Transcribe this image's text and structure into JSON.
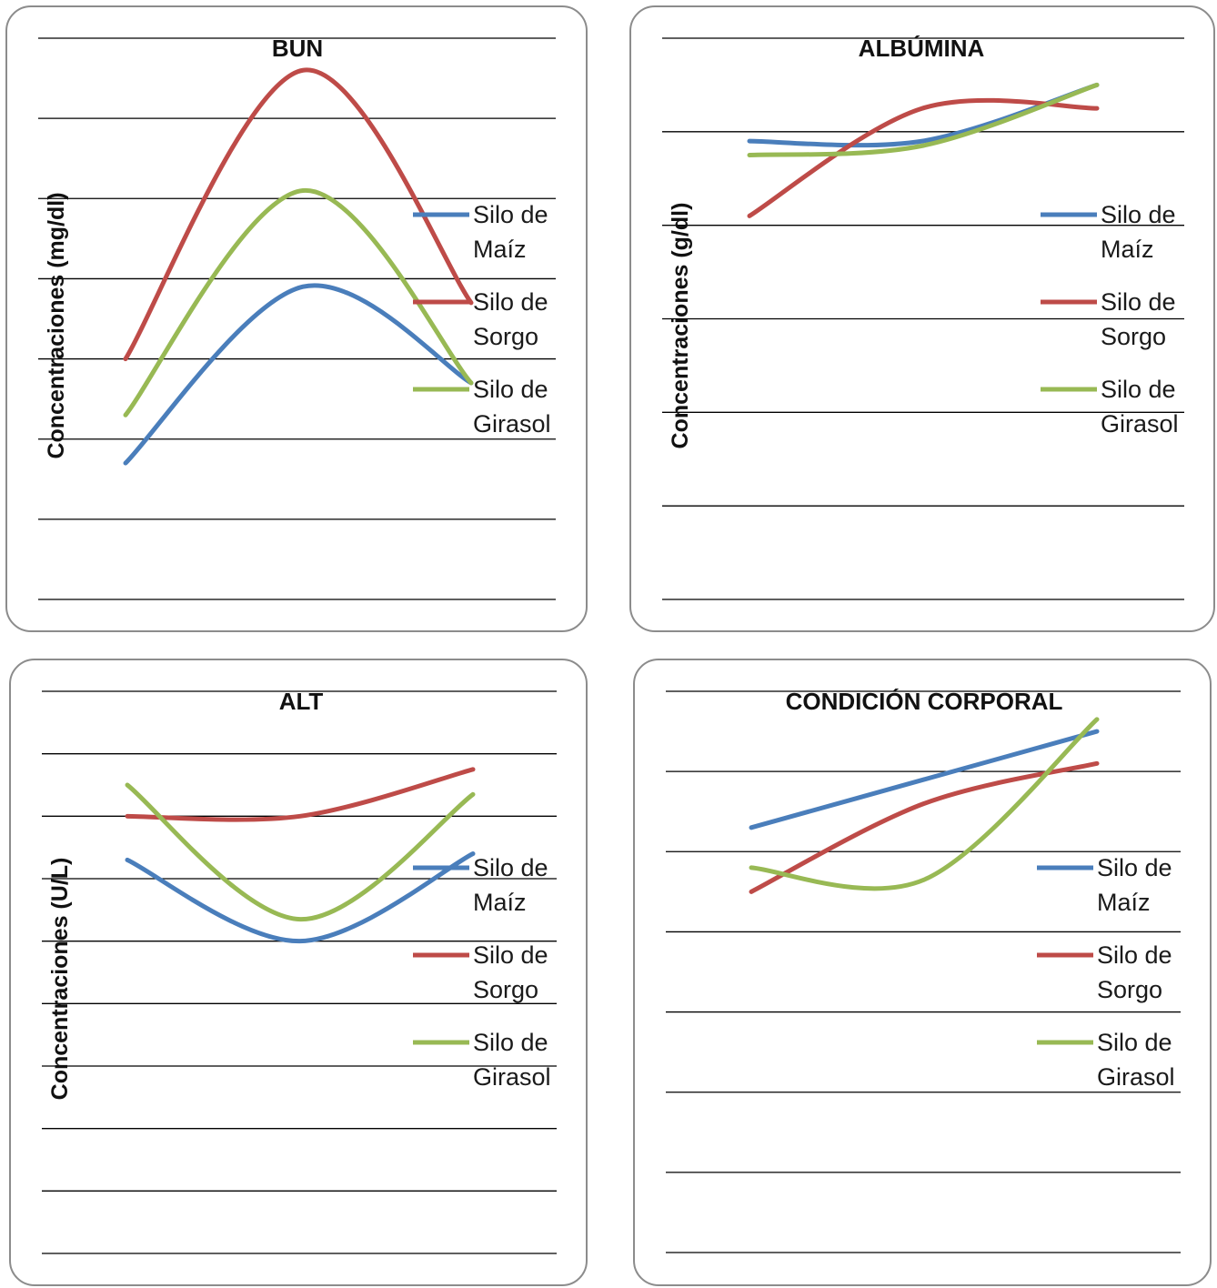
{
  "colors": {
    "maiz": "#4a7ebb",
    "sorgo": "#be4b48",
    "girasol": "#98b954",
    "grid": "#000000"
  },
  "chart_data": [
    {
      "type": "line",
      "title": "BUN",
      "ylabel": "Concentraciones (mg/dl)",
      "xlabel": "",
      "x": [
        1,
        2,
        3
      ],
      "ylim": [
        0,
        7
      ],
      "gridlines": 7,
      "grid": true,
      "legend": "right",
      "series": [
        {
          "name": "Silo de Maíz",
          "values": [
            1.7,
            3.9,
            2.7
          ]
        },
        {
          "name": "Silo de Sorgo",
          "values": [
            3.0,
            6.6,
            3.7
          ]
        },
        {
          "name": "Silo de Girasol",
          "values": [
            2.3,
            5.1,
            2.7
          ]
        }
      ]
    },
    {
      "type": "line",
      "title": "ALBÚMINA",
      "ylabel": "Concentraciones (g/dl)",
      "xlabel": "",
      "x": [
        1,
        2,
        3
      ],
      "ylim": [
        0,
        6
      ],
      "gridlines": 6,
      "grid": true,
      "legend": "right",
      "series": [
        {
          "name": "Silo de Maíz",
          "values": [
            4.9,
            4.9,
            5.5
          ]
        },
        {
          "name": "Silo de Sorgo",
          "values": [
            4.1,
            5.25,
            5.25
          ]
        },
        {
          "name": "Silo de Girasol",
          "values": [
            4.75,
            4.85,
            5.5
          ]
        }
      ]
    },
    {
      "type": "line",
      "title": "ALT",
      "ylabel": "Concentraciones (U/L)",
      "xlabel": "",
      "x": [
        1,
        2,
        3
      ],
      "ylim": [
        0,
        9
      ],
      "gridlines": 9,
      "grid": true,
      "legend": "right",
      "series": [
        {
          "name": "Silo de Maíz",
          "values": [
            6.3,
            5.0,
            6.4
          ]
        },
        {
          "name": "Silo de Sorgo",
          "values": [
            7.0,
            7.0,
            7.75
          ]
        },
        {
          "name": "Silo de Girasol",
          "values": [
            7.5,
            5.35,
            7.35
          ]
        }
      ]
    },
    {
      "type": "line",
      "title": "CONDICIÓN CORPORAL",
      "ylabel": "",
      "xlabel": "",
      "x": [
        1,
        2,
        3
      ],
      "ylim": [
        0,
        7
      ],
      "gridlines": 7,
      "grid": true,
      "legend": "right",
      "series": [
        {
          "name": "Silo de Maíz",
          "values": [
            5.3,
            5.9,
            6.5
          ]
        },
        {
          "name": "Silo de Sorgo",
          "values": [
            4.5,
            5.6,
            6.1
          ]
        },
        {
          "name": "Silo de Girasol",
          "values": [
            4.8,
            4.65,
            6.65
          ]
        }
      ]
    }
  ]
}
